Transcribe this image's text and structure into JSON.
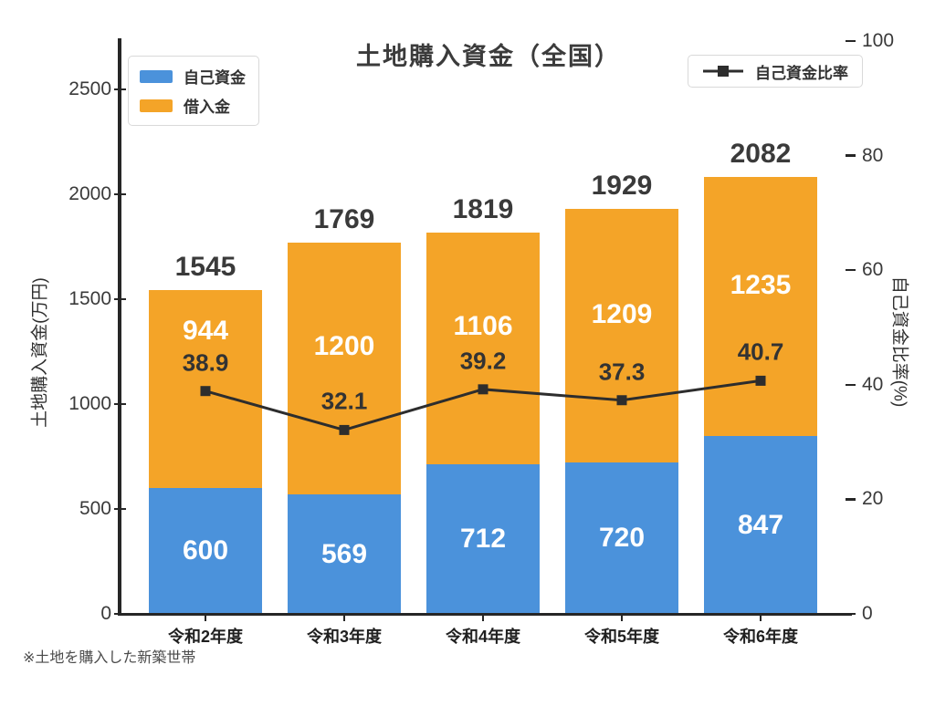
{
  "title": "土地購入資金（全国）",
  "footnote": "※土地を購入した新築世帯",
  "colors": {
    "own_funds": "#4B92DB",
    "loan": "#F4A428",
    "ratio_line": "#2D2D2D",
    "spine": "#262626",
    "text": "#3A3A3A"
  },
  "legend_bars": [
    {
      "label": "自己資金",
      "color": "#4B92DB"
    },
    {
      "label": "借入金",
      "color": "#F4A428"
    }
  ],
  "legend_line": {
    "label": "自己資金比率"
  },
  "chart_data": {
    "type": "bar",
    "subtype": "stacked-bar-with-line",
    "title": "土地購入資金（全国）",
    "categories": [
      "令和2年度",
      "令和3年度",
      "令和4年度",
      "令和5年度",
      "令和6年度"
    ],
    "series": [
      {
        "name": "自己資金",
        "type": "bar",
        "axis": "left",
        "color": "#4B92DB",
        "values": [
          600,
          569,
          712,
          720,
          847
        ]
      },
      {
        "name": "借入金",
        "type": "bar",
        "axis": "left",
        "color": "#F4A428",
        "values": [
          944,
          1200,
          1106,
          1209,
          1235
        ]
      },
      {
        "name": "自己資金比率",
        "type": "line",
        "axis": "right",
        "color": "#2D2D2D",
        "marker": "square",
        "values": [
          38.9,
          32.1,
          39.2,
          37.3,
          40.7
        ]
      }
    ],
    "totals": [
      1545,
      1769,
      1819,
      1929,
      2082
    ],
    "stacked": true,
    "grid": false,
    "legend_position": "top-left and top-right",
    "left_axis": {
      "label": "土地購入資金(万円)",
      "ticks": [
        0,
        500,
        1000,
        1500,
        2000,
        2500
      ],
      "range": [
        0,
        2730
      ]
    },
    "right_axis": {
      "label": "自己資金比率(%)",
      "ticks": [
        0,
        20,
        40,
        60,
        80,
        100
      ],
      "range": [
        0,
        100
      ]
    },
    "annotation": "※土地を購入した新築世帯"
  }
}
